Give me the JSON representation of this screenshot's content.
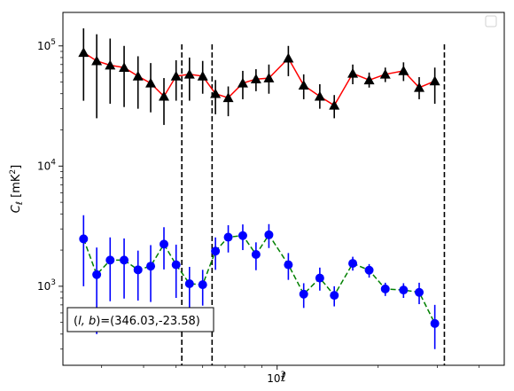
{
  "chart_data": {
    "type": "scatter",
    "title": "",
    "xlabel": "ℓ",
    "ylabel": "C_ℓ [mK²]",
    "xscale": "log",
    "yscale": "log",
    "xlim": [
      230,
      4750
    ],
    "ylim": [
      220,
      190000
    ],
    "x_tick_major": [
      {
        "value": 1000,
        "label": "10^3"
      }
    ],
    "y_tick_major": [
      {
        "value": 1000,
        "label": "10^3"
      },
      {
        "value": 10000,
        "label": "10^4"
      },
      {
        "value": 100000,
        "label": "10^5"
      }
    ],
    "grid": false,
    "legend": {
      "placement": "top-right",
      "entries": []
    },
    "vlines": [
      520,
      640,
      3150
    ],
    "annotation": "(l, b)=(346.03,-23.58)",
    "series": [
      {
        "marker": "triangle",
        "line_style": "solid",
        "line_color": "#ff0000",
        "marker_color": "#000000",
        "errorbar_color": "#000000",
        "points": [
          {
            "x": 265,
            "y": 88000,
            "lo": 35000,
            "hi": 140000
          },
          {
            "x": 290,
            "y": 75000,
            "lo": 25000,
            "hi": 125000
          },
          {
            "x": 318,
            "y": 69000,
            "lo": 33000,
            "hi": 115000
          },
          {
            "x": 350,
            "y": 66000,
            "lo": 31000,
            "hi": 100000
          },
          {
            "x": 385,
            "y": 56000,
            "lo": 30000,
            "hi": 82000
          },
          {
            "x": 420,
            "y": 49000,
            "lo": 28000,
            "hi": 72000
          },
          {
            "x": 460,
            "y": 38000,
            "lo": 22000,
            "hi": 54000
          },
          {
            "x": 500,
            "y": 56000,
            "lo": 35000,
            "hi": 76000
          },
          {
            "x": 548,
            "y": 58000,
            "lo": 35000,
            "hi": 80000
          },
          {
            "x": 600,
            "y": 56000,
            "lo": 40000,
            "hi": 75000
          },
          {
            "x": 655,
            "y": 40000,
            "lo": 27000,
            "hi": 52000
          },
          {
            "x": 715,
            "y": 37000,
            "lo": 26000,
            "hi": 46000
          },
          {
            "x": 790,
            "y": 49000,
            "lo": 36000,
            "hi": 62000
          },
          {
            "x": 865,
            "y": 53000,
            "lo": 42000,
            "hi": 64000
          },
          {
            "x": 945,
            "y": 54000,
            "lo": 40000,
            "hi": 70000
          },
          {
            "x": 1080,
            "y": 79000,
            "lo": 56000,
            "hi": 100000
          },
          {
            "x": 1200,
            "y": 47000,
            "lo": 36000,
            "hi": 58000
          },
          {
            "x": 1340,
            "y": 38000,
            "lo": 30000,
            "hi": 48000
          },
          {
            "x": 1480,
            "y": 32000,
            "lo": 25000,
            "hi": 39000
          },
          {
            "x": 1680,
            "y": 59000,
            "lo": 48000,
            "hi": 70000
          },
          {
            "x": 1880,
            "y": 52000,
            "lo": 45000,
            "hi": 60000
          },
          {
            "x": 2100,
            "y": 58000,
            "lo": 50000,
            "hi": 66000
          },
          {
            "x": 2380,
            "y": 62000,
            "lo": 51000,
            "hi": 73000
          },
          {
            "x": 2650,
            "y": 45000,
            "lo": 36000,
            "hi": 55000
          },
          {
            "x": 2950,
            "y": 51000,
            "lo": 33000,
            "hi": 66000
          }
        ]
      },
      {
        "marker": "circle",
        "line_style": "dashed",
        "line_color": "#008000",
        "marker_color": "#0000ff",
        "errorbar_color": "#0000ff",
        "points": [
          {
            "x": 265,
            "y": 2480,
            "lo": 1000,
            "hi": 3900
          },
          {
            "x": 290,
            "y": 1250,
            "lo": 400,
            "hi": 2100
          },
          {
            "x": 318,
            "y": 1650,
            "lo": 750,
            "hi": 2550
          },
          {
            "x": 350,
            "y": 1650,
            "lo": 790,
            "hi": 2500
          },
          {
            "x": 385,
            "y": 1370,
            "lo": 760,
            "hi": 1980
          },
          {
            "x": 420,
            "y": 1470,
            "lo": 740,
            "hi": 2200
          },
          {
            "x": 460,
            "y": 2240,
            "lo": 1380,
            "hi": 3100
          },
          {
            "x": 500,
            "y": 1510,
            "lo": 800,
            "hi": 2220
          },
          {
            "x": 548,
            "y": 1050,
            "lo": 650,
            "hi": 1450
          },
          {
            "x": 600,
            "y": 1030,
            "lo": 690,
            "hi": 1370
          },
          {
            "x": 655,
            "y": 1960,
            "lo": 1370,
            "hi": 2550
          },
          {
            "x": 715,
            "y": 2560,
            "lo": 1910,
            "hi": 3220
          },
          {
            "x": 790,
            "y": 2640,
            "lo": 2000,
            "hi": 3270
          },
          {
            "x": 865,
            "y": 1840,
            "lo": 1360,
            "hi": 2320
          },
          {
            "x": 945,
            "y": 2680,
            "lo": 2080,
            "hi": 3290
          },
          {
            "x": 1080,
            "y": 1510,
            "lo": 1130,
            "hi": 1890
          },
          {
            "x": 1200,
            "y": 860,
            "lo": 660,
            "hi": 1060
          },
          {
            "x": 1340,
            "y": 1170,
            "lo": 920,
            "hi": 1430
          },
          {
            "x": 1480,
            "y": 840,
            "lo": 680,
            "hi": 1000
          },
          {
            "x": 1680,
            "y": 1550,
            "lo": 1350,
            "hi": 1760
          },
          {
            "x": 1880,
            "y": 1360,
            "lo": 1180,
            "hi": 1530
          },
          {
            "x": 2100,
            "y": 950,
            "lo": 830,
            "hi": 1070
          },
          {
            "x": 2380,
            "y": 930,
            "lo": 800,
            "hi": 1060
          },
          {
            "x": 2650,
            "y": 890,
            "lo": 710,
            "hi": 1070
          },
          {
            "x": 2950,
            "y": 490,
            "lo": 300,
            "hi": 700
          }
        ]
      }
    ]
  }
}
